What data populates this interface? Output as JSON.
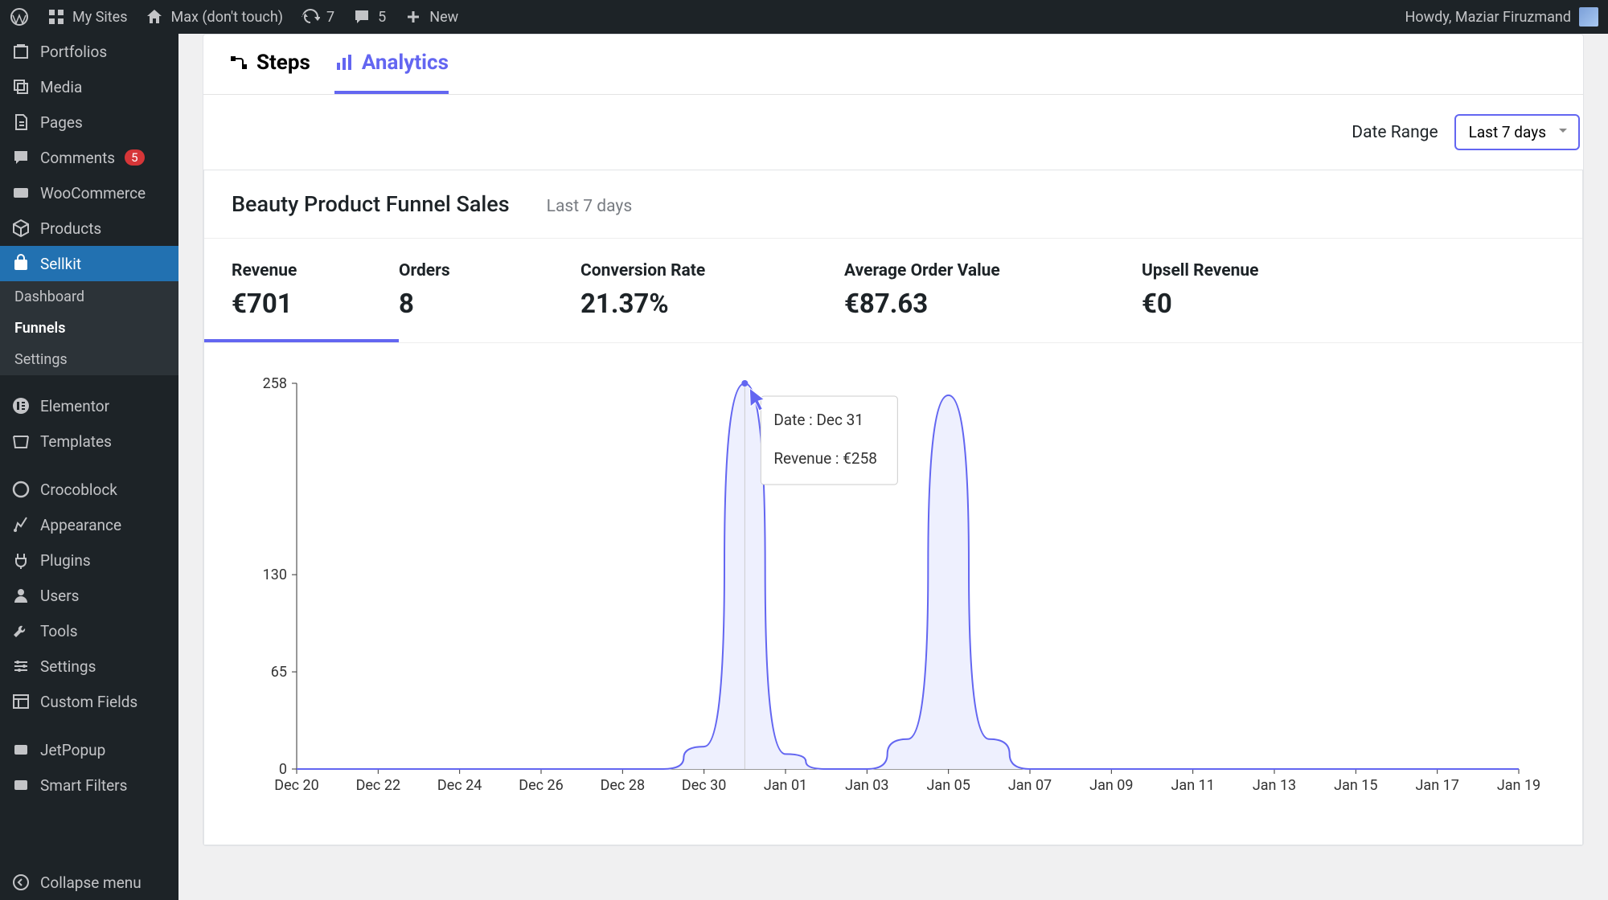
{
  "adminbar": {
    "mysites": "My Sites",
    "sitename": "Max (don't touch)",
    "updates": "7",
    "comments": "5",
    "newlabel": "New",
    "howdy": "Howdy, Maziar Firuzmand"
  },
  "sidebar": {
    "items": [
      {
        "label": "Portfolios",
        "icon": "portfolio"
      },
      {
        "label": "Media",
        "icon": "media"
      },
      {
        "label": "Pages",
        "icon": "pages"
      },
      {
        "label": "Comments",
        "icon": "comments",
        "badge": "5"
      },
      {
        "label": "WooCommerce",
        "icon": "woo"
      },
      {
        "label": "Products",
        "icon": "products"
      },
      {
        "label": "Sellkit",
        "icon": "sellkit",
        "active": true
      }
    ],
    "submenu": [
      {
        "label": "Dashboard"
      },
      {
        "label": "Funnels",
        "active": true
      },
      {
        "label": "Settings"
      }
    ],
    "items2": [
      {
        "label": "Elementor",
        "icon": "elementor"
      },
      {
        "label": "Templates",
        "icon": "templates"
      }
    ],
    "items3": [
      {
        "label": "Crocoblock",
        "icon": "crocoblock"
      },
      {
        "label": "Appearance",
        "icon": "appearance"
      },
      {
        "label": "Plugins",
        "icon": "plugins"
      },
      {
        "label": "Users",
        "icon": "users"
      },
      {
        "label": "Tools",
        "icon": "tools"
      },
      {
        "label": "Settings",
        "icon": "settings"
      },
      {
        "label": "Custom Fields",
        "icon": "customfields"
      }
    ],
    "items4": [
      {
        "label": "JetPopup",
        "icon": "jetpopup"
      },
      {
        "label": "Smart Filters",
        "icon": "smartfilters"
      }
    ],
    "collapse": "Collapse menu"
  },
  "tabs": {
    "steps": "Steps",
    "analytics": "Analytics"
  },
  "daterange": {
    "label": "Date Range",
    "selected": "Last 7 days"
  },
  "funnel": {
    "title": "Beauty Product Funnel Sales",
    "subtitle": "Last 7 days"
  },
  "metrics": [
    {
      "label": "Revenue",
      "value": "€701"
    },
    {
      "label": "Orders",
      "value": "8"
    },
    {
      "label": "Conversion Rate",
      "value": "21.37%"
    },
    {
      "label": "Average Order Value",
      "value": "€87.63"
    },
    {
      "label": "Upsell Revenue",
      "value": "€0"
    }
  ],
  "chart": {
    "type": "area",
    "ylabels": [
      "258",
      "130",
      "65",
      "0"
    ],
    "yvalues": [
      258,
      130,
      65,
      0
    ],
    "ylim": [
      0,
      258
    ],
    "xlabels": [
      "Dec 20",
      "Dec 22",
      "Dec 24",
      "Dec 26",
      "Dec 28",
      "Dec 30",
      "Jan 01",
      "Jan 03",
      "Jan 05",
      "Jan 07",
      "Jan 09",
      "Jan 11",
      "Jan 13",
      "Jan 15",
      "Jan 17",
      "Jan 19"
    ],
    "xcount": 31,
    "series": [
      {
        "x": 0,
        "y": 0
      },
      {
        "x": 1,
        "y": 0
      },
      {
        "x": 2,
        "y": 0
      },
      {
        "x": 3,
        "y": 0
      },
      {
        "x": 4,
        "y": 0
      },
      {
        "x": 5,
        "y": 0
      },
      {
        "x": 6,
        "y": 0
      },
      {
        "x": 7,
        "y": 0
      },
      {
        "x": 8,
        "y": 0
      },
      {
        "x": 9,
        "y": 0
      },
      {
        "x": 10,
        "y": 15
      },
      {
        "x": 11,
        "y": 258
      },
      {
        "x": 12,
        "y": 10
      },
      {
        "x": 13,
        "y": 0
      },
      {
        "x": 14,
        "y": 0
      },
      {
        "x": 15,
        "y": 20
      },
      {
        "x": 16,
        "y": 250
      },
      {
        "x": 17,
        "y": 20
      },
      {
        "x": 18,
        "y": 0
      },
      {
        "x": 19,
        "y": 0
      },
      {
        "x": 20,
        "y": 0
      },
      {
        "x": 21,
        "y": 0
      },
      {
        "x": 22,
        "y": 0
      },
      {
        "x": 23,
        "y": 0
      },
      {
        "x": 24,
        "y": 0
      },
      {
        "x": 25,
        "y": 0
      },
      {
        "x": 26,
        "y": 0
      },
      {
        "x": 27,
        "y": 0
      },
      {
        "x": 28,
        "y": 0
      },
      {
        "x": 29,
        "y": 0
      },
      {
        "x": 30,
        "y": 0
      }
    ],
    "line_color": "#6366f1",
    "fill_color": "#eef0fe",
    "axis_color": "#333333",
    "label_fontsize": 18,
    "hover": {
      "index": 11,
      "date_label": "Date : Dec 31",
      "revenue_label": "Revenue : €258"
    }
  }
}
